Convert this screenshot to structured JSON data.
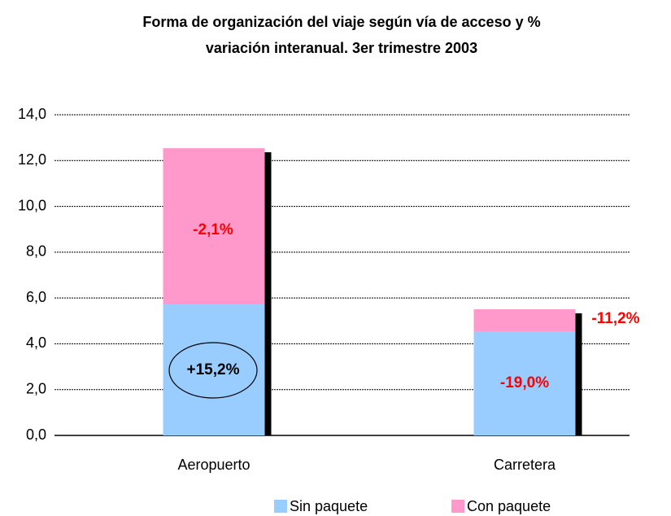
{
  "chart_data": {
    "type": "stacked_bar",
    "title": "Forma de organización del viaje según vía de acceso y % variación interanual. 3er trimestre 2003",
    "categories": [
      "Aeropuerto",
      "Carretera"
    ],
    "series": [
      {
        "name": "Sin paquete",
        "color": "#99ccff",
        "values": [
          5.72,
          4.55
        ]
      },
      {
        "name": "Con paquete",
        "color": "#ff99cc",
        "values": [
          6.82,
          0.96
        ]
      }
    ],
    "ylim": [
      0,
      14
    ],
    "yticks": [
      {
        "value": 0,
        "label": "0,0"
      },
      {
        "value": 2,
        "label": "2,0"
      },
      {
        "value": 4,
        "label": "4,0"
      },
      {
        "value": 6,
        "label": "6,0"
      },
      {
        "value": 8,
        "label": "8,0"
      },
      {
        "value": 10,
        "label": "10,0"
      },
      {
        "value": 12,
        "label": "12,0"
      },
      {
        "value": 14,
        "label": "14,0"
      }
    ],
    "grid": true,
    "legend": "bottom",
    "annotations": [
      {
        "text": "+15,2%",
        "color": "#000000"
      },
      {
        "text": "-2,1%",
        "color": "#ff0000"
      },
      {
        "text": "-19,0%",
        "color": "#ff0000"
      },
      {
        "text": "-11,2%",
        "color": "#ff0000"
      }
    ]
  }
}
